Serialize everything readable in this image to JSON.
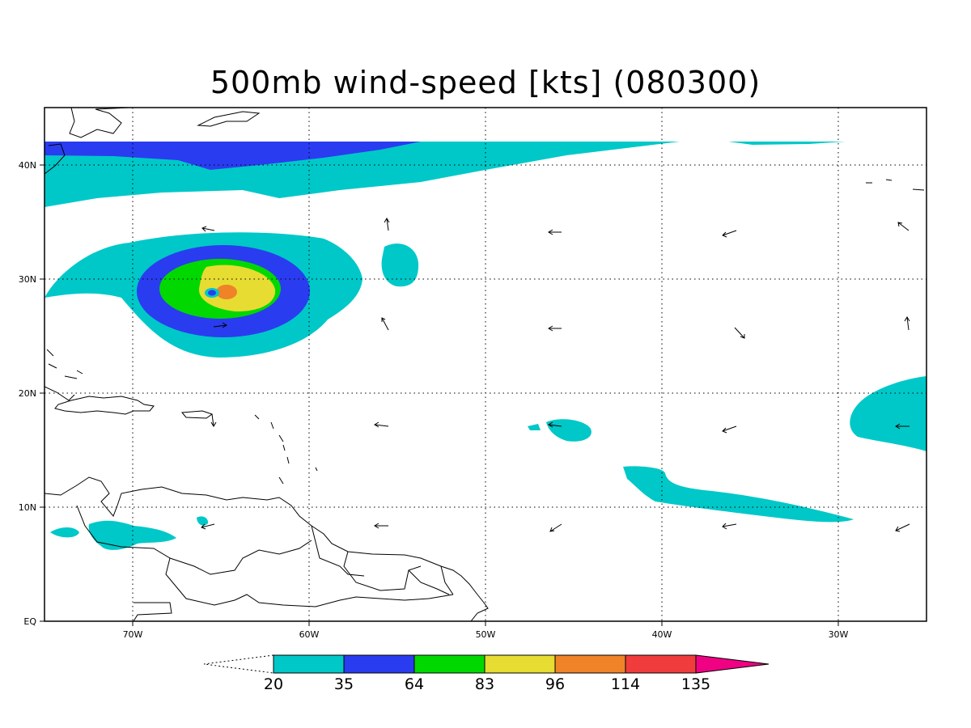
{
  "title": "500mb wind-speed [kts] (080300)",
  "axes": {
    "x_ticks": [
      "70W",
      "60W",
      "50W",
      "40W",
      "30W"
    ],
    "y_ticks": [
      "EQ",
      "10N",
      "20N",
      "30N",
      "40N"
    ],
    "lon_range": [
      -75,
      -25
    ],
    "lat_range": [
      0,
      45
    ],
    "grid": "dotted"
  },
  "colorbar": {
    "levels": [
      "20",
      "35",
      "64",
      "83",
      "96",
      "114",
      "135"
    ],
    "colors": [
      "#00c8c8",
      "#2a3cf0",
      "#00d800",
      "#e6dc32",
      "#f08228",
      "#f03c3c",
      "#f00082"
    ],
    "below_color": "#ffffff",
    "extend": "both"
  },
  "wind_field": {
    "feature": "hurricane vortex",
    "center_lat": 28.8,
    "center_lon": -65.6
  }
}
